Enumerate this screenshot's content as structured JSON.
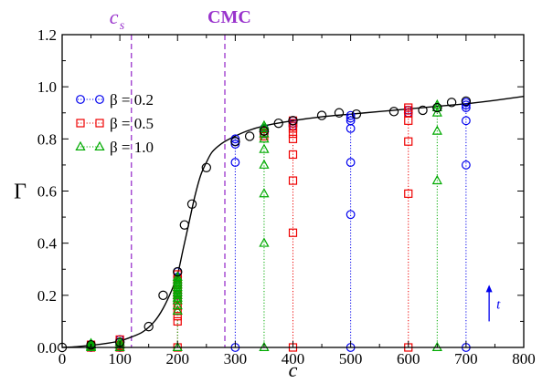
{
  "chart_data": {
    "type": "scatter",
    "xlabel": "c",
    "ylabel": "Γ",
    "xlim": [
      0,
      800
    ],
    "ylim": [
      0,
      1.2
    ],
    "x_ticks": [
      0,
      100,
      200,
      300,
      400,
      500,
      600,
      700,
      800
    ],
    "y_ticks": [
      0.0,
      0.2,
      0.4,
      0.6,
      0.8,
      1.0,
      1.2
    ],
    "y_tick_labels": [
      "0.0",
      "0.2",
      "0.4",
      "0.6",
      "0.8",
      "1.0",
      "1.2"
    ],
    "grid": false,
    "legend_position": "upper-left",
    "vlines": [
      {
        "x": 120,
        "label": "c",
        "label_sub": "s",
        "color": "#9933cc"
      },
      {
        "x": 282,
        "label": "CMC",
        "color": "#9933cc"
      }
    ],
    "arrow_annotation": {
      "x": 740,
      "y_from": 0.1,
      "y_to": 0.24,
      "label": "t",
      "color": "#0000ee"
    },
    "curve": {
      "name": "",
      "color": "#000000",
      "points": [
        [
          0,
          0.0
        ],
        [
          25,
          0.003
        ],
        [
          50,
          0.008
        ],
        [
          75,
          0.015
        ],
        [
          100,
          0.025
        ],
        [
          120,
          0.04
        ],
        [
          140,
          0.06
        ],
        [
          160,
          0.1
        ],
        [
          175,
          0.15
        ],
        [
          190,
          0.22
        ],
        [
          200,
          0.28
        ],
        [
          210,
          0.38
        ],
        [
          220,
          0.48
        ],
        [
          230,
          0.58
        ],
        [
          240,
          0.66
        ],
        [
          250,
          0.71
        ],
        [
          260,
          0.75
        ],
        [
          275,
          0.78
        ],
        [
          290,
          0.8
        ],
        [
          320,
          0.83
        ],
        [
          350,
          0.85
        ],
        [
          400,
          0.87
        ],
        [
          450,
          0.885
        ],
        [
          500,
          0.895
        ],
        [
          550,
          0.905
        ],
        [
          600,
          0.915
        ],
        [
          650,
          0.925
        ],
        [
          700,
          0.935
        ],
        [
          750,
          0.948
        ],
        [
          800,
          0.963
        ]
      ]
    },
    "black_circles": [
      [
        0,
        0.0
      ],
      [
        50,
        0.01
      ],
      [
        100,
        0.02
      ],
      [
        150,
        0.08
      ],
      [
        175,
        0.2
      ],
      [
        200,
        0.29
      ],
      [
        212,
        0.47
      ],
      [
        225,
        0.55
      ],
      [
        250,
        0.69
      ],
      [
        300,
        0.79
      ],
      [
        325,
        0.81
      ],
      [
        350,
        0.83
      ],
      [
        375,
        0.86
      ],
      [
        400,
        0.87
      ],
      [
        450,
        0.89
      ],
      [
        480,
        0.9
      ],
      [
        510,
        0.895
      ],
      [
        575,
        0.905
      ],
      [
        625,
        0.91
      ],
      [
        650,
        0.92
      ],
      [
        675,
        0.94
      ],
      [
        700,
        0.945
      ]
    ],
    "series": [
      {
        "name": "β = 0.2",
        "marker": "circle",
        "color": "#0000ee",
        "columns": [
          {
            "x": 50,
            "values": [
              0.0,
              0.005,
              0.01
            ]
          },
          {
            "x": 100,
            "values": [
              0.0,
              0.01,
              0.02,
              0.03
            ]
          },
          {
            "x": 200,
            "values": [
              0.2,
              0.24,
              0.27,
              0.29
            ]
          },
          {
            "x": 300,
            "values": [
              0.0,
              0.71,
              0.78,
              0.79,
              0.8
            ]
          },
          {
            "x": 350,
            "values": [
              0.82,
              0.83,
              0.84
            ]
          },
          {
            "x": 400,
            "values": [
              0.85,
              0.86,
              0.87
            ]
          },
          {
            "x": 500,
            "values": [
              0.0,
              0.51,
              0.71,
              0.84,
              0.87,
              0.88,
              0.89
            ]
          },
          {
            "x": 600,
            "values": [
              0.9,
              0.91
            ]
          },
          {
            "x": 650,
            "values": [
              0.92
            ]
          },
          {
            "x": 700,
            "values": [
              0.0,
              0.7,
              0.87,
              0.92,
              0.93,
              0.94
            ]
          }
        ]
      },
      {
        "name": "β = 0.5",
        "marker": "square",
        "color": "#ee0000",
        "columns": [
          {
            "x": 50,
            "values": [
              0.0,
              0.005,
              0.01
            ]
          },
          {
            "x": 100,
            "values": [
              0.0,
              0.005,
              0.01,
              0.02,
              0.03
            ]
          },
          {
            "x": 200,
            "values": [
              0.0,
              0.1,
              0.12,
              0.14,
              0.16,
              0.18,
              0.2,
              0.22,
              0.24,
              0.26,
              0.28
            ]
          },
          {
            "x": 350,
            "values": [
              0.81,
              0.82,
              0.83
            ]
          },
          {
            "x": 400,
            "values": [
              0.0,
              0.44,
              0.64,
              0.74,
              0.8,
              0.82,
              0.84,
              0.85,
              0.86,
              0.87
            ]
          },
          {
            "x": 600,
            "values": [
              0.0,
              0.59,
              0.79,
              0.87,
              0.9,
              0.91,
              0.92
            ]
          }
        ]
      },
      {
        "name": "β = 1.0",
        "marker": "triangle",
        "color": "#00aa00",
        "columns": [
          {
            "x": 50,
            "values": [
              0.0,
              0.005,
              0.01,
              0.015
            ]
          },
          {
            "x": 100,
            "values": [
              0.0,
              0.01,
              0.02
            ]
          },
          {
            "x": 200,
            "values": [
              0.0,
              0.14,
              0.16,
              0.18,
              0.19,
              0.2,
              0.21,
              0.22,
              0.23,
              0.24,
              0.25,
              0.26,
              0.27
            ]
          },
          {
            "x": 350,
            "values": [
              0.0,
              0.4,
              0.59,
              0.7,
              0.76,
              0.8,
              0.82,
              0.84,
              0.85
            ]
          },
          {
            "x": 650,
            "values": [
              0.0,
              0.64,
              0.83,
              0.9,
              0.92,
              0.93
            ]
          }
        ]
      }
    ]
  }
}
